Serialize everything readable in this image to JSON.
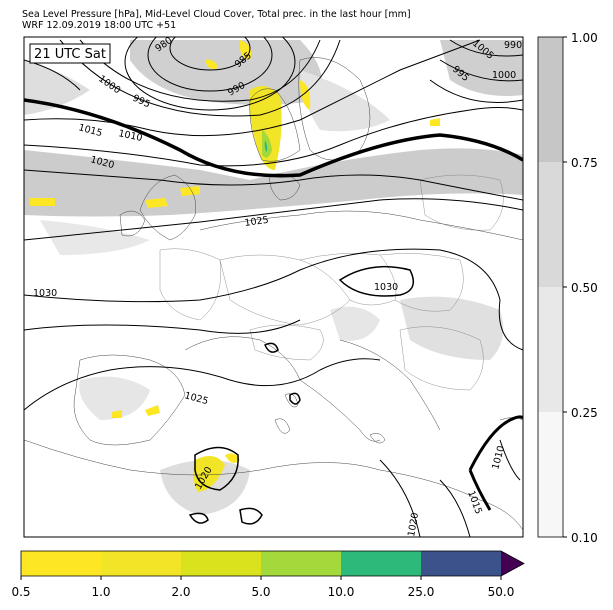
{
  "title": {
    "line1": "Sea Level Pressure [hPa], Mid-Level Cloud Cover, Total prec. in the last hour [mm]",
    "line2": "WRF 12.09.2019 18:00 UTC +51"
  },
  "map": {
    "time_label": "21 UTC Sat",
    "isobar_labels": [
      "980",
      "985",
      "990",
      "995",
      "1000",
      "1005",
      "1000",
      "990",
      "995",
      "1005",
      "1010",
      "1015",
      "1020",
      "1025",
      "1030",
      "1030",
      "1025",
      "1020",
      "1015",
      "1010",
      "1020"
    ]
  },
  "cloud_colorbar": {
    "ticks": [
      "1.00",
      "0.75",
      "0.50",
      "0.25",
      "0.10"
    ],
    "levels": [
      0.1,
      0.25,
      0.5,
      0.75,
      1.0
    ],
    "colors": [
      "#f7f7f7",
      "#e8e8e8",
      "#d9d9d9",
      "#c6c6c6"
    ]
  },
  "precip_colorbar": {
    "ticks": [
      "0.5",
      "1.0",
      "2.0",
      "5.0",
      "10.0",
      "25.0",
      "50.0"
    ],
    "colors": [
      "#fde725",
      "#f2e426",
      "#d9e21d",
      "#a4d93b",
      "#2db97a",
      "#3b528b"
    ],
    "extend_color": "#440154"
  }
}
